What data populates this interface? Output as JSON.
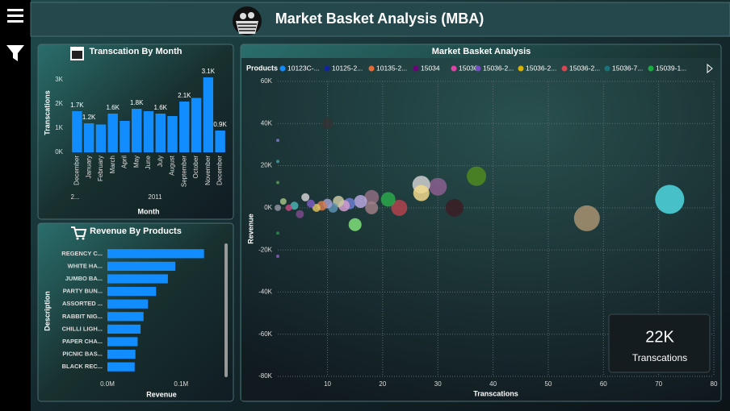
{
  "header": {
    "title": "Market Basket Analysis (MBA)"
  },
  "card": {
    "value": "22K",
    "label": "Transcations"
  },
  "chart_data": [
    {
      "type": "bar",
      "title": "Transcation By Month",
      "color": "#118dff",
      "categories": [
        "December",
        "January",
        "February",
        "March",
        "April",
        "May",
        "June",
        "July",
        "August",
        "September",
        "October",
        "November",
        "December"
      ],
      "values": [
        1700,
        1200,
        1150,
        1600,
        1300,
        1800,
        1700,
        1600,
        1500,
        2100,
        2250,
        3100,
        900
      ],
      "value_labels": [
        "1.7K",
        "1.2K",
        null,
        "1.6K",
        null,
        "1.8K",
        null,
        "1.6K",
        null,
        "2.1K",
        null,
        "3.1K",
        "0.9K"
      ],
      "year_labels": [
        "2...",
        "2011"
      ],
      "ylim": [
        0,
        3300
      ],
      "yticks": [
        {
          "value": 0,
          "label": "0K"
        },
        {
          "value": 1000,
          "label": "1K"
        },
        {
          "value": 2000,
          "label": "2K"
        },
        {
          "value": 3000,
          "label": "3K"
        }
      ],
      "xlabel": "Month",
      "ylabel": "Transcations"
    },
    {
      "type": "hbar",
      "title": "Revenue By Products",
      "color": "#118dff",
      "categories": [
        "REGENCY C...",
        "WHITE HA...",
        "JUMBO BA...",
        "PARTY BUN...",
        "ASSORTED ...",
        "RABBIT NIG...",
        "CHILLI LIGH...",
        "PAPER CHA...",
        "PICNIC BAS...",
        "BLACK REC..."
      ],
      "values": [
        131000,
        92000,
        82000,
        66000,
        55000,
        49000,
        45000,
        41000,
        38000,
        37000
      ],
      "xlim": [
        0,
        150000
      ],
      "xticks": [
        {
          "value": 0,
          "label": "0.0M"
        },
        {
          "value": 100000,
          "label": "0.1M"
        }
      ],
      "xlabel": "Revenue",
      "ylabel": "Description"
    },
    {
      "type": "scatter",
      "title": "Market Basket Analysis",
      "legend_title": "Products",
      "series": [
        {
          "name": "10123C-...",
          "color": "#118dff"
        },
        {
          "name": "10125-2...",
          "color": "#12239e"
        },
        {
          "name": "10135-2...",
          "color": "#e66c37"
        },
        {
          "name": "15034",
          "color": "#6b007b"
        },
        {
          "name": "15036",
          "color": "#e044a7"
        },
        {
          "name": "15036-2...",
          "color": "#744ec2"
        },
        {
          "name": "15036-2...",
          "color": "#d9b300"
        },
        {
          "name": "15036-2...",
          "color": "#d64550"
        },
        {
          "name": "15036-7...",
          "color": "#197278"
        },
        {
          "name": "15039-1...",
          "color": "#1aab40"
        }
      ],
      "x": [
        10,
        72,
        57,
        37,
        30,
        27,
        27,
        33,
        23,
        21,
        18,
        18,
        16,
        15,
        14,
        13,
        12,
        11,
        10,
        9,
        8,
        7,
        6,
        5,
        4,
        3,
        2,
        1,
        1,
        1,
        1,
        1,
        1
      ],
      "y": [
        40000,
        4000,
        -5000,
        15000,
        10000,
        11000,
        7000,
        0,
        0,
        4000,
        5000,
        0,
        3000,
        -8000,
        2000,
        1000,
        3000,
        0,
        2000,
        1000,
        0,
        2000,
        5000,
        -3000,
        1000,
        0,
        3000,
        32000,
        22000,
        12000,
        -12000,
        -23000,
        0
      ],
      "sizes": [
        7,
        18,
        16,
        12,
        11,
        11,
        10,
        11,
        10,
        9,
        9,
        8,
        8,
        8,
        7,
        7,
        7,
        6,
        6,
        6,
        5,
        5,
        5,
        5,
        5,
        4,
        4,
        2,
        2,
        2,
        2,
        2,
        4
      ],
      "colors": [
        "#333333",
        "#4fd8e0",
        "#a89270",
        "#4f8a1e",
        "#8a5f8e",
        "#cfcfcf",
        "#f0d98c",
        "#3b1d25",
        "#b3434e",
        "#2aa84a",
        "#8f6d80",
        "#9c7e85",
        "#b8a8e0",
        "#7fe07a",
        "#6b7fcf",
        "#d29ccf",
        "#c8c8a0",
        "#5a8fb0",
        "#a0a0d0",
        "#d07a50",
        "#e0c060",
        "#7a5cc0",
        "#d0d0d0",
        "#7a4a8a",
        "#4ab0b0",
        "#c04a80",
        "#a0c080",
        "#7a7acf",
        "#3aa0a0",
        "#5a9a50",
        "#2a8a4a",
        "#8a5ac0",
        "#9090a0"
      ],
      "xlim": [
        1,
        80
      ],
      "xticks": [
        10,
        20,
        30,
        40,
        50,
        60,
        70,
        80
      ],
      "ylim": [
        -80000,
        60000
      ],
      "yticks": [
        {
          "value": -80000,
          "label": "-80K"
        },
        {
          "value": -60000,
          "label": "-60K"
        },
        {
          "value": -40000,
          "label": "-40K"
        },
        {
          "value": -20000,
          "label": "-20K"
        },
        {
          "value": 0,
          "label": "0K"
        },
        {
          "value": 20000,
          "label": "20K"
        },
        {
          "value": 40000,
          "label": "40K"
        },
        {
          "value": 60000,
          "label": "60K"
        }
      ],
      "xlabel": "Transcations",
      "ylabel": "Revenue",
      "grid": true
    }
  ]
}
